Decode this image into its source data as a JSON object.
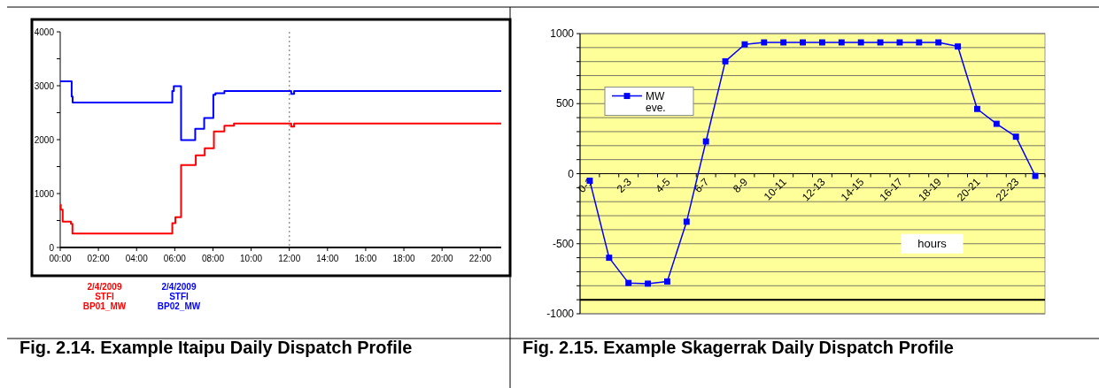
{
  "chart_data": [
    {
      "type": "step",
      "title": "Fig. 2.14. Example Itaipu Daily Dispatch Profile",
      "xlim": [
        0,
        23.1
      ],
      "ylim": [
        0,
        4000
      ],
      "xticks": [
        {
          "value": 0,
          "label": "00:00"
        },
        {
          "value": 2,
          "label": "02:00"
        },
        {
          "value": 4,
          "label": "04:00"
        },
        {
          "value": 6,
          "label": "06:00"
        },
        {
          "value": 8,
          "label": "08:00"
        },
        {
          "value": 10,
          "label": "10:00"
        },
        {
          "value": 12,
          "label": "12:00"
        },
        {
          "value": 14,
          "label": "14:00"
        },
        {
          "value": 16,
          "label": "16:00"
        },
        {
          "value": 18,
          "label": "18:00"
        },
        {
          "value": 20,
          "label": "20:00"
        },
        {
          "value": 22,
          "label": "22:00"
        }
      ],
      "yticks": [
        0,
        {
          "value": 500,
          "label": null
        },
        1000,
        {
          "value": 1500,
          "label": null
        },
        2000,
        {
          "value": 2500,
          "label": null
        },
        3000,
        {
          "value": 3500,
          "label": null
        },
        4000
      ],
      "legend": "bottom",
      "ref_lines": [
        {
          "axis": "x",
          "value": 12,
          "line_style": "dotted",
          "color": "#999999"
        }
      ],
      "series": [
        {
          "name": "2/4/2009 STFI BP01_MW",
          "color": "#ff0000",
          "x": [
            0,
            0.03,
            0.13,
            0.56,
            0.64,
            5.87,
            6.03,
            6.33,
            7.1,
            7.57,
            8.05,
            8.6,
            9.1,
            12.1,
            12.25,
            23.1
          ],
          "values": [
            790,
            700,
            480,
            440,
            260,
            450,
            560,
            1530,
            1710,
            1840,
            2150,
            2260,
            2300,
            2240,
            2300,
            2300
          ]
        },
        {
          "name": "2/4/2009 STFI BP02_MW",
          "color": "#0000ff",
          "x": [
            0,
            0.6,
            0.65,
            5.87,
            5.95,
            6.33,
            7.07,
            7.54,
            8.02,
            8.13,
            8.6,
            12.1,
            12.25,
            23.1
          ],
          "values": [
            3080,
            2800,
            2690,
            2900,
            2990,
            1990,
            2200,
            2400,
            2830,
            2860,
            2900,
            2850,
            2900,
            2900
          ]
        }
      ]
    },
    {
      "type": "line",
      "title": "Fig. 2.15. Example Skagerrak Daily Dispatch Profile",
      "xlabel": "hours",
      "categories": [
        "0-1",
        null,
        "2-3",
        null,
        "4-5",
        null,
        "6-7",
        null,
        "8-9",
        null,
        "10-11",
        null,
        "12-13",
        null,
        "14-15",
        null,
        "16-17",
        null,
        "18-19",
        null,
        "20-21",
        null,
        "22-23",
        null
      ],
      "ylim": [
        -1000,
        1000
      ],
      "yticks": [
        -1000,
        {
          "value": -900,
          "label": null
        },
        {
          "value": -800,
          "label": null
        },
        {
          "value": -700,
          "label": null
        },
        {
          "value": -600,
          "label": null
        },
        -500,
        {
          "value": -400,
          "label": null
        },
        {
          "value": -300,
          "label": null
        },
        {
          "value": -200,
          "label": null
        },
        {
          "value": -100,
          "label": null
        },
        0,
        {
          "value": 100,
          "label": null
        },
        {
          "value": 200,
          "label": null
        },
        {
          "value": 300,
          "label": null
        },
        {
          "value": 400,
          "label": null
        },
        500,
        {
          "value": 600,
          "label": null
        },
        {
          "value": 700,
          "label": null
        },
        {
          "value": 800,
          "label": null
        },
        {
          "value": 900,
          "label": null
        },
        1000
      ],
      "grid": true,
      "legend": "left",
      "marker": "square",
      "ref_lines": [
        {
          "axis": "y",
          "value": -900,
          "color": "#000000"
        }
      ],
      "series": [
        {
          "name": "MW eve.",
          "color": "#0000ff",
          "values": [
            -50,
            -600,
            -780,
            -785,
            -770,
            -343,
            230,
            802,
            923,
            937,
            937,
            937,
            937,
            937,
            937,
            937,
            937,
            937,
            937,
            908,
            462,
            356,
            264,
            -16
          ]
        }
      ]
    }
  ]
}
